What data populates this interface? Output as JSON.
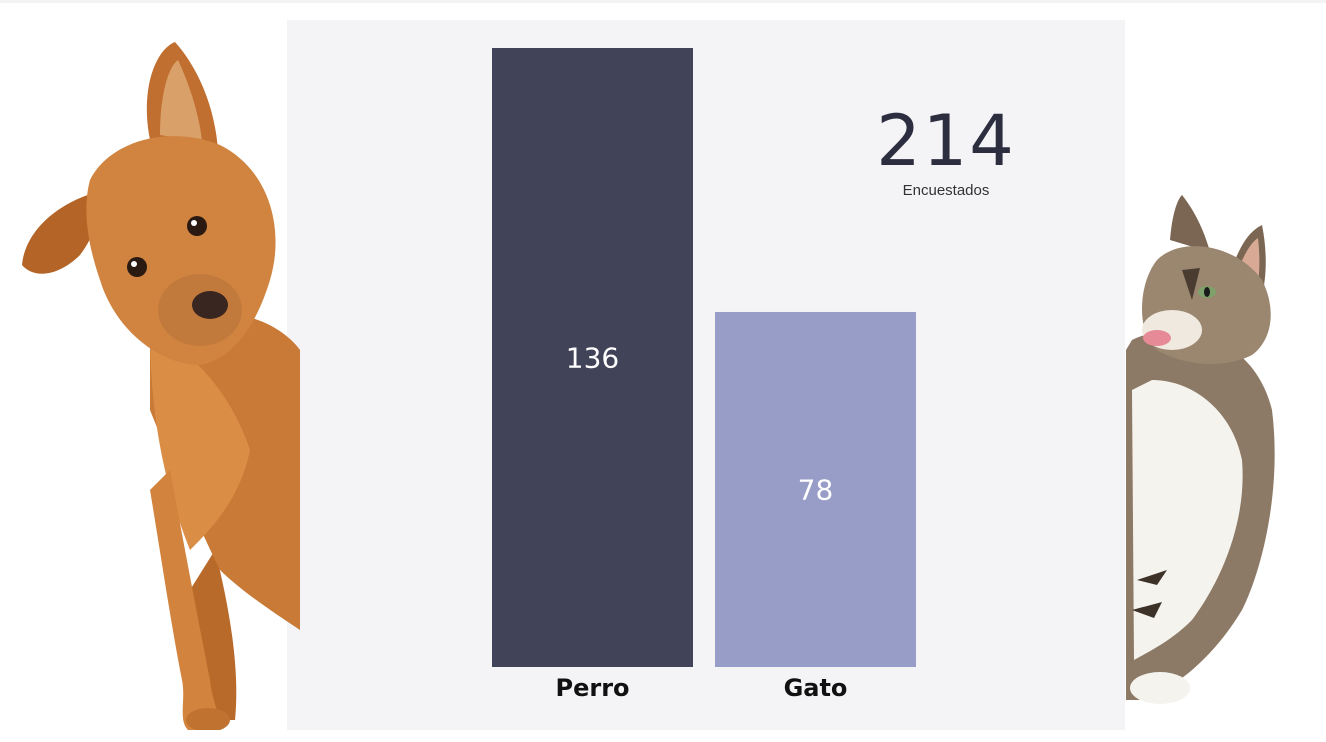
{
  "chart_data": {
    "type": "bar",
    "categories": [
      "Perro",
      "Gato"
    ],
    "values": [
      136,
      78
    ],
    "ylim": [
      0,
      136
    ],
    "colors": [
      "#414358",
      "#989dc7"
    ],
    "grid": false,
    "legend": "none"
  },
  "kpi": {
    "value": "214",
    "label": "Encuestados"
  },
  "decorations": {
    "left_image": "dog-illustration",
    "right_image": "cat-illustration"
  }
}
